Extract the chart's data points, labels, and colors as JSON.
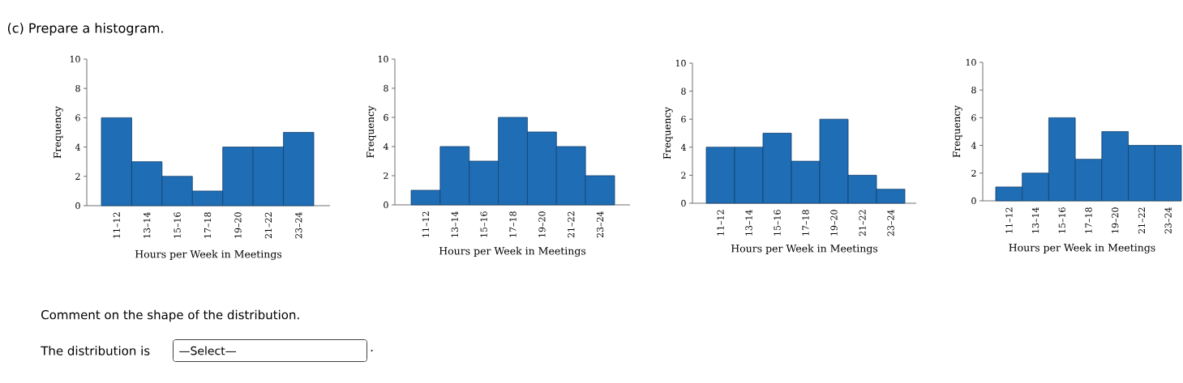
{
  "chart_data": [
    {
      "type": "bar",
      "title": "(c) Prepare a histogram.",
      "categories": [
        "11–12",
        "13–14",
        "15–16",
        "17–18",
        "19–20",
        "21–22",
        "23–24"
      ],
      "values": [
        6,
        3,
        2,
        1,
        4,
        4,
        5
      ],
      "color": "#1f6db5",
      "xlabel": "Hours per Week in Meetings",
      "ylabel": "Frequency",
      "ylim": [
        0,
        10
      ],
      "yticks": [
        0,
        2,
        4,
        6,
        8,
        10
      ],
      "annotations": [
        "Comment on the shape of the distribution.",
        "The distribution is",
        "—Select—",
        "."
      ]
    },
    {
      "type": "bar",
      "categories": [
        "11–12",
        "13–14",
        "15–16",
        "17–18",
        "19–20",
        "21–22",
        "23–24"
      ],
      "values": [
        1,
        4,
        3,
        6,
        5,
        4,
        2
      ],
      "color": "#1f6db5",
      "xlabel": "Hours per Week in Meetings",
      "ylabel": "Frequency",
      "ylim": [
        0,
        10
      ],
      "yticks": [
        0,
        2,
        4,
        6,
        8,
        10
      ]
    },
    {
      "type": "bar",
      "categories": [
        "11–12",
        "13–14",
        "15–16",
        "17–18",
        "19–20",
        "21–22",
        "23–24"
      ],
      "values": [
        4,
        4,
        5,
        3,
        6,
        2,
        1
      ],
      "color": "#1f6db5",
      "xlabel": "Hours per Week in Meetings",
      "ylabel": "Frequency",
      "ylim": [
        0,
        10
      ],
      "yticks": [
        0,
        2,
        4,
        6,
        8,
        10
      ]
    },
    {
      "type": "bar",
      "categories": [
        "11–12",
        "13–14",
        "15–16",
        "17–18",
        "19–20",
        "21–22",
        "23–24"
      ],
      "values": [
        1,
        2,
        6,
        3,
        5,
        4,
        4
      ],
      "color": "#1f6db5",
      "xlabel": "Hours per Week in Meetings",
      "ylabel": "Frequency",
      "ylim": [
        0,
        10
      ],
      "yticks": [
        0,
        2,
        4,
        6,
        8,
        10
      ]
    }
  ]
}
